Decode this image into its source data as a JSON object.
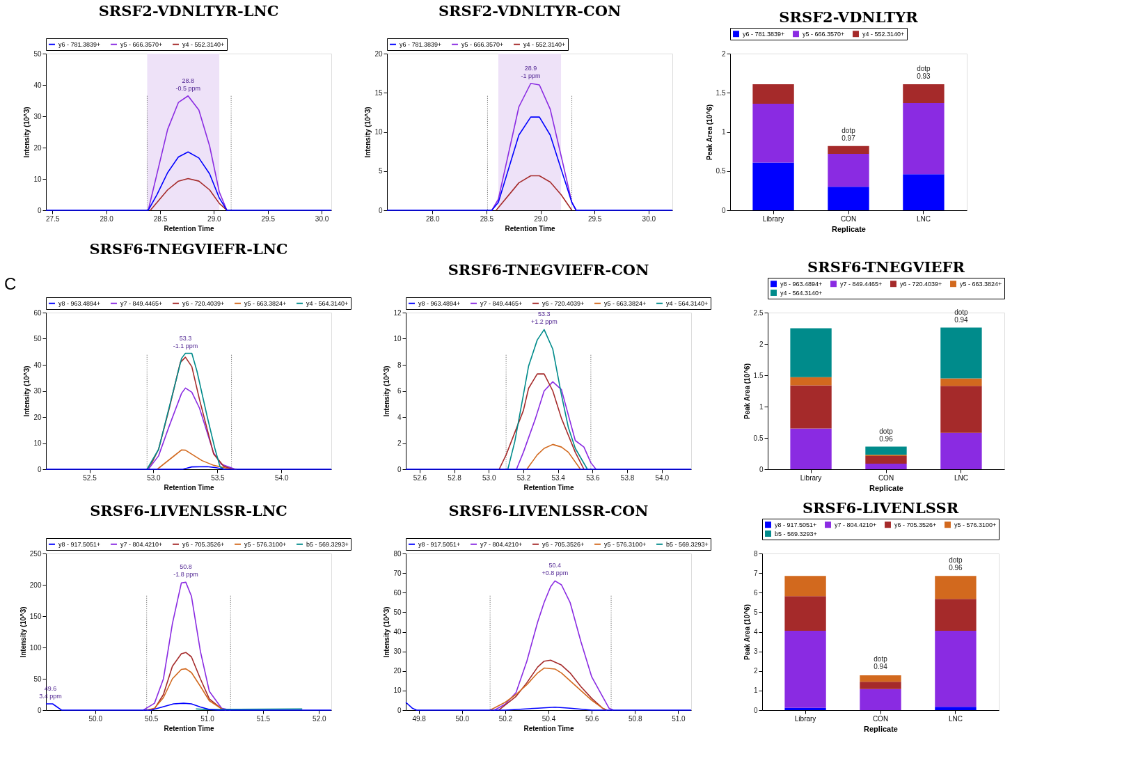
{
  "chart_data": [
    {
      "type": "line",
      "title": "SRSF2-VDNLTYR-LNC",
      "xlabel": "Retention Time",
      "ylabel": "Intensity (10^3)",
      "legend": "top left",
      "xlim": [
        27.44,
        30.09
      ],
      "ylim": [
        0,
        50
      ],
      "xticks": [
        27.5,
        {
          "value": 28,
          "label": "28.0"
        },
        28.5,
        {
          "value": 29,
          "label": "29.0"
        },
        29.5,
        {
          "value": 30,
          "label": "30.0"
        }
      ],
      "yticks": [
        0,
        10,
        20,
        30,
        40,
        50
      ],
      "bands": [
        {
          "axis": "x",
          "from": 28.38,
          "to": 29.05,
          "color": "#eee2f8"
        }
      ],
      "ref_lines": [
        {
          "axis": "x",
          "value": 28.38,
          "color": "#555555",
          "line_style": "dotted"
        },
        {
          "axis": "x",
          "value": 29.16,
          "color": "#555555",
          "line_style": "dotted"
        }
      ],
      "annotations": [
        {
          "text": "28.8",
          "x": 28.76,
          "y": 36.5
        },
        {
          "text": "-0.5 ppm",
          "x": 28.76,
          "y": 36.5
        }
      ],
      "series": [
        {
          "name": "y6 - 781.3839+",
          "color": "#0000ff",
          "x": [
            27.44,
            28.39,
            28.47,
            28.57,
            28.67,
            28.76,
            28.86,
            28.96,
            29.05,
            29.12,
            30.09
          ],
          "values": [
            0,
            0,
            4.9,
            12,
            17,
            18.6,
            16.7,
            11.6,
            3.9,
            0,
            0
          ]
        },
        {
          "name": "y5 - 666.3570+",
          "color": "#8a2be2",
          "x": [
            28.39,
            28.57,
            28.67,
            28.76,
            28.86,
            28.96,
            29.05,
            29.12
          ],
          "values": [
            0,
            25.8,
            34.4,
            36.5,
            32,
            20.5,
            5.8,
            0
          ]
        },
        {
          "name": "y4 - 552.3140+",
          "color": "#a52a2a",
          "x": [
            28.41,
            28.57,
            28.67,
            28.76,
            28.86,
            28.96,
            29.05,
            29.12
          ],
          "values": [
            0,
            6.5,
            9.3,
            10.1,
            9.3,
            6.5,
            2.2,
            0
          ]
        }
      ]
    },
    {
      "type": "line",
      "title": "SRSF2-VDNLTYR-CON",
      "xlabel": "Retention Time",
      "ylabel": "Intensity (10^3)",
      "legend": "top left",
      "xlim": [
        27.58,
        30.22
      ],
      "ylim": [
        0,
        20
      ],
      "xticks": [
        {
          "value": 28,
          "label": "28.0"
        },
        28.5,
        {
          "value": 29,
          "label": "29.0"
        },
        29.5,
        {
          "value": 30,
          "label": "30.0"
        }
      ],
      "yticks": [
        0,
        5,
        10,
        15,
        20
      ],
      "bands": [
        {
          "axis": "x",
          "from": 28.61,
          "to": 29.19,
          "color": "#eee2f8"
        }
      ],
      "ref_lines": [
        {
          "axis": "x",
          "value": 28.51,
          "color": "#555555",
          "line_style": "dotted"
        },
        {
          "axis": "x",
          "value": 29.29,
          "color": "#555555",
          "line_style": "dotted"
        }
      ],
      "annotations": [
        {
          "text": "28.9",
          "x": 28.91,
          "y": 16.2
        },
        {
          "text": "-1 ppm",
          "x": 28.91,
          "y": 16.2
        }
      ],
      "series": [
        {
          "name": "y6 - 781.3839+",
          "color": "#0000ff",
          "x": [
            27.58,
            28.55,
            28.61,
            28.8,
            28.91,
            28.99,
            29.09,
            29.29,
            29.33,
            30.22
          ],
          "values": [
            0,
            0,
            1.0,
            9.6,
            11.9,
            11.9,
            9.6,
            1.0,
            0,
            0
          ]
        },
        {
          "name": "y5 - 666.3570+",
          "color": "#8a2be2",
          "x": [
            28.55,
            28.61,
            28.8,
            28.91,
            28.99,
            29.09,
            29.2,
            29.29,
            29.33
          ],
          "values": [
            0,
            1.4,
            13.2,
            16.2,
            16.0,
            12.9,
            6.4,
            1.0,
            0
          ]
        },
        {
          "name": "y4 - 552.3140+",
          "color": "#a52a2a",
          "x": [
            28.59,
            28.8,
            28.91,
            28.99,
            29.09,
            29.19,
            29.29
          ],
          "values": [
            0,
            3.5,
            4.4,
            4.4,
            3.6,
            2.0,
            0
          ]
        }
      ]
    },
    {
      "type": "bar",
      "stacked": true,
      "title": "SRSF2-VDNLTYR",
      "xlabel": "Replicate",
      "ylabel": "Peak Area (10^6)",
      "legend": "top",
      "ylim": [
        0,
        2
      ],
      "yticks": [
        0,
        0.5,
        1,
        1.5,
        2
      ],
      "categories": [
        "Library",
        "CON",
        "LNC"
      ],
      "annotations": [
        {
          "text": "dotp",
          "x": "CON",
          "y": 0.82
        },
        {
          "text": "0.97",
          "x": "CON",
          "y": 0.82
        },
        {
          "text": "dotp",
          "x": "LNC",
          "y": 1.61
        },
        {
          "text": "0.93",
          "x": "LNC",
          "y": 1.61
        }
      ],
      "series": [
        {
          "name": "y6 - 781.3839+",
          "color": "#0000ff",
          "values": [
            0.61,
            0.3,
            0.46
          ]
        },
        {
          "name": "y5 - 666.3570+",
          "color": "#8a2be2",
          "values": [
            0.75,
            0.42,
            0.91
          ]
        },
        {
          "name": "y4 - 552.3140+",
          "color": "#a52a2a",
          "values": [
            0.25,
            0.1,
            0.24
          ]
        }
      ]
    },
    {
      "type": "line",
      "title": "SRSF6-TNEGVIEFR-LNC",
      "xlabel": "Retention Time",
      "ylabel": "Intensity (10^3)",
      "legend": "top left",
      "xlim": [
        52.16,
        54.39
      ],
      "ylim": [
        0,
        60
      ],
      "xticks": [
        52.5,
        {
          "value": 53,
          "label": "53.0"
        },
        53.5,
        {
          "value": 54,
          "label": "54.0"
        }
      ],
      "yticks": [
        0,
        10,
        20,
        30,
        40,
        50,
        60
      ],
      "ref_lines": [
        {
          "axis": "x",
          "value": 52.95,
          "color": "#555555",
          "line_style": "dotted"
        },
        {
          "axis": "x",
          "value": 53.61,
          "color": "#555555",
          "line_style": "dotted"
        }
      ],
      "annotations": [
        "C",
        {
          "text": "53.3",
          "x": 53.25,
          "y": 44.4
        },
        {
          "text": "-1.1 ppm",
          "x": 53.25,
          "y": 44.4
        }
      ],
      "series": [
        {
          "name": "y8 - 963.4894+",
          "color": "#0000ff",
          "x": [
            52.16,
            53.23,
            53.3,
            53.42,
            53.49,
            53.55,
            54.39
          ],
          "values": [
            0,
            0,
            0.9,
            1.0,
            0.6,
            0,
            0
          ]
        },
        {
          "name": "y7 - 849.4465+",
          "color": "#8a2be2",
          "x": [
            52.96,
            53.04,
            53.12,
            53.22,
            53.25,
            53.3,
            53.36,
            53.47,
            53.53,
            53.64
          ],
          "values": [
            0,
            5.1,
            16.1,
            29.1,
            31.1,
            29.5,
            23.4,
            6.3,
            1.9,
            0
          ]
        },
        {
          "name": "y6 - 720.4039+",
          "color": "#a52a2a",
          "x": [
            52.95,
            52.99,
            53.04,
            53.12,
            53.21,
            53.25,
            53.3,
            53.36,
            53.47,
            53.55,
            53.62
          ],
          "values": [
            0,
            2.7,
            7.6,
            22.6,
            40.9,
            42.9,
            39.3,
            26.7,
            5.9,
            1.1,
            0
          ]
        },
        {
          "name": "y5 - 663.3824+",
          "color": "#d2691e",
          "x": [
            53.03,
            53.22,
            53.25,
            53.38,
            53.47,
            53.59,
            53.65
          ],
          "values": [
            0,
            7.4,
            7.3,
            3.3,
            1.5,
            0.2,
            0
          ]
        },
        {
          "name": "y4 - 564.3140+",
          "color": "#008b8b",
          "x": [
            52.95,
            53.04,
            53.22,
            53.25,
            53.3,
            53.34,
            53.42,
            53.48,
            53.52,
            53.55
          ],
          "values": [
            0,
            7.6,
            42.5,
            44.4,
            44.4,
            37.6,
            20.2,
            8,
            1.0,
            0
          ]
        }
      ]
    },
    {
      "type": "line",
      "title": "SRSF6-TNEGVIEFR-CON",
      "xlabel": "Retention Time",
      "ylabel": "Intensity (10^3)",
      "legend": "top left",
      "xlim": [
        52.52,
        54.17
      ],
      "ylim": [
        0,
        12
      ],
      "xticks": [
        52.6,
        52.8,
        {
          "value": 53,
          "label": "53.0"
        },
        53.2,
        53.4,
        53.6,
        53.8,
        {
          "value": 54,
          "label": "54.0"
        }
      ],
      "yticks": [
        0,
        2,
        4,
        6,
        8,
        10,
        12
      ],
      "ref_lines": [
        {
          "axis": "x",
          "value": 53.1,
          "color": "#555555",
          "line_style": "dotted"
        },
        {
          "axis": "x",
          "value": 53.59,
          "color": "#555555",
          "line_style": "dotted"
        }
      ],
      "annotations": [
        {
          "text": "53.3",
          "x": 53.32,
          "y": 10.7
        },
        {
          "text": "+1.2 ppm",
          "x": 53.32,
          "y": 10.7
        }
      ],
      "series": [
        {
          "name": "y8 - 963.4894+",
          "color": "#0000ff",
          "x": [
            52.52,
            54.17
          ],
          "values": [
            0,
            0
          ]
        },
        {
          "name": "y7 - 849.4465+",
          "color": "#8a2be2",
          "x": [
            53.16,
            53.2,
            53.27,
            53.32,
            53.37,
            53.42,
            53.5,
            53.55,
            53.59,
            53.62
          ],
          "values": [
            0,
            1.3,
            3.9,
            6.0,
            6.7,
            6.1,
            2.2,
            1.7,
            0.5,
            0
          ]
        },
        {
          "name": "y6 - 720.4039+",
          "color": "#a52a2a",
          "x": [
            53.06,
            53.1,
            53.2,
            53.23,
            53.28,
            53.32,
            53.37,
            53.42,
            53.46,
            53.5,
            53.55
          ],
          "values": [
            0,
            1.1,
            4.5,
            6.2,
            7.3,
            7.3,
            6.0,
            3.9,
            2.6,
            1.3,
            0
          ]
        },
        {
          "name": "y5 - 663.3824+",
          "color": "#d2691e",
          "x": [
            53.22,
            53.28,
            53.32,
            53.37,
            53.42,
            53.46,
            53.53
          ],
          "values": [
            0,
            1.1,
            1.6,
            1.9,
            1.7,
            1.3,
            0
          ]
        },
        {
          "name": "y4 - 564.3140+",
          "color": "#008b8b",
          "x": [
            53.11,
            53.15,
            53.2,
            53.23,
            53.28,
            53.32,
            53.37,
            53.42,
            53.46,
            53.5,
            53.57
          ],
          "values": [
            0,
            2.1,
            5.7,
            7.9,
            9.9,
            10.7,
            9.2,
            5.7,
            3.2,
            1.6,
            0
          ]
        }
      ]
    },
    {
      "type": "bar",
      "stacked": true,
      "title": "SRSF6-TNEGVIEFR",
      "xlabel": "Replicate",
      "ylabel": "Peak Area (10^6)",
      "legend": "top",
      "ylim": [
        0,
        2.5
      ],
      "yticks": [
        0,
        0.5,
        1,
        1.5,
        2,
        2.5
      ],
      "categories": [
        "Library",
        "CON",
        "LNC"
      ],
      "annotations": [
        {
          "text": "dotp",
          "x": "CON",
          "y": 0.36
        },
        {
          "text": "0.96",
          "x": "CON",
          "y": 0.36
        },
        {
          "text": "dotp",
          "x": "LNC",
          "y": 2.26
        },
        {
          "text": "0.94",
          "x": "LNC",
          "y": 2.26
        }
      ],
      "series": [
        {
          "name": "y8 - 963.4894+",
          "color": "#0000ff",
          "values": [
            0,
            0,
            0
          ]
        },
        {
          "name": "y7 - 849.4465+",
          "color": "#8a2be2",
          "values": [
            0.65,
            0.09,
            0.58
          ]
        },
        {
          "name": "y6 - 720.4039+",
          "color": "#a52a2a",
          "values": [
            0.69,
            0.12,
            0.75
          ]
        },
        {
          "name": "y5 - 663.3824+",
          "color": "#d2691e",
          "values": [
            0.13,
            0.02,
            0.12
          ]
        },
        {
          "name": "y4 - 564.3140+",
          "color": "#008b8b",
          "values": [
            0.78,
            0.13,
            0.81
          ]
        }
      ]
    },
    {
      "type": "line",
      "title": "SRSF6-LIVENLSSR-LNC",
      "xlabel": "Retention Time",
      "ylabel": "Intensity (10^3)",
      "legend": "top left",
      "xlim": [
        49.56,
        52.11
      ],
      "ylim": [
        0,
        250
      ],
      "xticks": [
        {
          "value": 50,
          "label": "50.0"
        },
        50.5,
        {
          "value": 51,
          "label": "51.0"
        },
        51.5,
        {
          "value": 52,
          "label": "52.0"
        }
      ],
      "yticks": [
        0,
        50,
        100,
        150,
        200,
        250
      ],
      "ref_lines": [
        {
          "axis": "x",
          "value": 50.46,
          "color": "#555555",
          "line_style": "dotted"
        },
        {
          "axis": "x",
          "value": 51.21,
          "color": "#555555",
          "line_style": "dotted"
        }
      ],
      "annotations": [
        {
          "text": "50.8",
          "x": 50.81,
          "y": 204
        },
        {
          "text": "-1.8 ppm",
          "x": 50.81,
          "y": 204
        },
        {
          "text": "49.6",
          "x": 49.6,
          "y": 10
        },
        {
          "text": "3.4 ppm",
          "x": 49.6,
          "y": 10
        }
      ],
      "series": [
        {
          "name": "y8 - 917.5051+",
          "color": "#0000ff",
          "x": [
            49.56,
            49.62,
            49.66,
            49.7,
            50.5,
            50.6,
            50.7,
            50.79,
            50.86,
            50.94,
            51.02,
            51.1,
            52.11
          ],
          "values": [
            10,
            10,
            5,
            0,
            0,
            5,
            10,
            11,
            10,
            5,
            1,
            0,
            0
          ]
        },
        {
          "name": "y7 - 804.4210+",
          "color": "#8a2be2",
          "x": [
            50.43,
            50.53,
            50.61,
            50.69,
            50.77,
            50.81,
            50.86,
            50.94,
            51.02,
            51.13,
            51.21
          ],
          "values": [
            0,
            11,
            50,
            138,
            203,
            204,
            182,
            94,
            30,
            3,
            0
          ]
        },
        {
          "name": "y6 - 705.3526+",
          "color": "#a52a2a",
          "x": [
            50.46,
            50.53,
            50.61,
            50.69,
            50.77,
            50.81,
            50.86,
            50.94,
            51.02,
            51.13,
            51.17
          ],
          "values": [
            0,
            2,
            25,
            70,
            90,
            92,
            85,
            50,
            18,
            2,
            0
          ]
        },
        {
          "name": "y5 - 576.3100+",
          "color": "#d2691e",
          "x": [
            50.46,
            50.53,
            50.61,
            50.69,
            50.77,
            50.81,
            50.86,
            50.94,
            51.02,
            51.13,
            51.17
          ],
          "values": [
            0,
            3,
            20,
            50,
            65,
            66,
            60,
            38,
            15,
            2,
            0
          ]
        },
        {
          "name": "b5 - 569.3293+",
          "color": "#008b8b",
          "x": [
            50.9,
            51.0,
            51.85
          ],
          "values": [
            2,
            1,
            2
          ]
        }
      ]
    },
    {
      "type": "line",
      "title": "SRSF6-LIVENLSSR-CON",
      "xlabel": "Retention Time",
      "ylabel": "Intensity (10^3)",
      "legend": "top left",
      "xlim": [
        49.74,
        51.06
      ],
      "ylim": [
        0,
        80
      ],
      "xticks": [
        49.8,
        {
          "value": 50,
          "label": "50.0"
        },
        50.2,
        50.4,
        50.6,
        50.8,
        {
          "value": 51,
          "label": "51.0"
        }
      ],
      "yticks": [
        0,
        10,
        20,
        30,
        40,
        50,
        60,
        70,
        80
      ],
      "ref_lines": [
        {
          "axis": "x",
          "value": 50.13,
          "color": "#555555",
          "line_style": "dotted"
        },
        {
          "axis": "x",
          "value": 50.69,
          "color": "#555555",
          "line_style": "dotted"
        }
      ],
      "annotations": [
        {
          "text": "50.4",
          "x": 50.43,
          "y": 66
        },
        {
          "text": "+0.8 ppm",
          "x": 50.43,
          "y": 66
        }
      ],
      "series": [
        {
          "name": "y8 - 917.5051+",
          "color": "#0000ff",
          "x": [
            49.74,
            49.77,
            49.79,
            50.2,
            50.35,
            50.43,
            50.5,
            50.6,
            51.06
          ],
          "values": [
            4,
            1,
            0,
            0,
            1,
            1.5,
            1,
            0,
            0
          ]
        },
        {
          "name": "y7 - 804.4210+",
          "color": "#8a2be2",
          "x": [
            50.15,
            50.2,
            50.25,
            50.3,
            50.35,
            50.38,
            50.41,
            50.43,
            50.46,
            50.5,
            50.55,
            50.6,
            50.65,
            50.68,
            50.7
          ],
          "values": [
            0,
            3,
            9,
            25,
            45,
            55,
            63,
            66,
            64,
            55,
            35,
            17,
            7,
            1,
            0
          ]
        },
        {
          "name": "y6 - 705.3526+",
          "color": "#a52a2a",
          "x": [
            50.17,
            50.25,
            50.3,
            50.35,
            50.38,
            50.41,
            50.46,
            50.5,
            50.55,
            50.6,
            50.65,
            50.67
          ],
          "values": [
            0,
            7,
            14,
            22,
            25,
            25.5,
            23,
            19,
            12,
            6,
            1,
            0
          ]
        },
        {
          "name": "y5 - 576.3100+",
          "color": "#d2691e",
          "x": [
            50.13,
            50.2,
            50.25,
            50.3,
            50.35,
            50.38,
            50.43,
            50.46,
            50.5,
            50.55,
            50.6,
            50.65,
            50.67
          ],
          "values": [
            0,
            4,
            8,
            13,
            19,
            21.5,
            21,
            19,
            15,
            10,
            5,
            1,
            0
          ]
        },
        {
          "name": "b5 - 569.3293+",
          "color": "#008b8b"
        }
      ]
    },
    {
      "type": "bar",
      "stacked": true,
      "title": "SRSF6-LIVENLSSR",
      "xlabel": "Replicate",
      "ylabel": "Peak Area (10^6)",
      "legend": "top",
      "ylim": [
        0,
        8
      ],
      "yticks": [
        0,
        1,
        2,
        3,
        4,
        5,
        6,
        7,
        8
      ],
      "categories": [
        "Library",
        "CON",
        "LNC"
      ],
      "annotations": [
        {
          "text": "dotp",
          "x": "CON",
          "y": 1.8
        },
        {
          "text": "0.94",
          "x": "CON",
          "y": 1.8
        },
        {
          "text": "dotp",
          "x": "LNC",
          "y": 6.85
        },
        {
          "text": "0.96",
          "x": "LNC",
          "y": 6.85
        }
      ],
      "series": [
        {
          "name": "y8 - 917.5051+",
          "color": "#0000ff",
          "values": [
            0.12,
            null,
            0.17
          ]
        },
        {
          "name": "y7 - 804.4210+",
          "color": "#8a2be2",
          "values": [
            3.93,
            1.08,
            3.88
          ]
        },
        {
          "name": "y6 - 705.3526+",
          "color": "#a52a2a",
          "values": [
            1.77,
            0.37,
            1.63
          ]
        },
        {
          "name": "y5 - 576.3100+",
          "color": "#d2691e",
          "values": [
            1.03,
            0.33,
            1.17
          ]
        },
        {
          "name": "b5 - 569.3293+",
          "color": "#008b8b",
          "values": [
            0,
            0,
            0
          ]
        }
      ]
    }
  ]
}
